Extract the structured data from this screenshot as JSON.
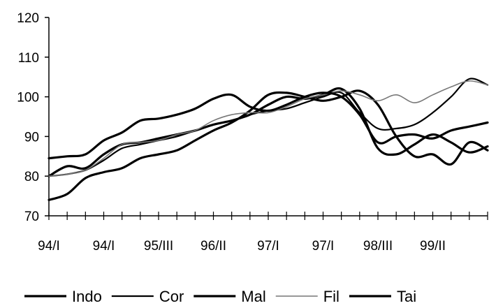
{
  "chart_data": {
    "type": "line",
    "title": "",
    "xlabel": "",
    "ylabel": "",
    "ylim": [
      70,
      120
    ],
    "yticks": [
      70,
      80,
      90,
      100,
      110,
      120
    ],
    "x_tick_labels": [
      "94/I",
      "94/I",
      "95/III",
      "96/II",
      "97/I",
      "97/I",
      "98/III",
      "99/II"
    ],
    "grid": false,
    "legend_position": "bottom",
    "n_points": 25,
    "series": [
      {
        "name": "Indo",
        "color": "#000000",
        "style": "thick",
        "values": [
          74,
          75.5,
          79.5,
          81,
          82,
          84.5,
          85.5,
          86.5,
          89,
          91.5,
          93.5,
          96.5,
          100.5,
          101,
          100,
          99,
          100,
          101.5,
          98,
          90,
          85,
          85.5,
          83,
          88.5,
          86.5
        ]
      },
      {
        "name": "Cor",
        "color": "#000000",
        "style": "medium",
        "values": [
          80,
          80.5,
          81.5,
          84,
          87,
          88,
          89,
          90,
          91.5,
          93,
          94,
          95.5,
          96.5,
          97,
          98.5,
          100,
          101,
          96,
          92,
          92,
          93,
          96,
          100,
          104.5,
          103
        ]
      },
      {
        "name": "Mal",
        "color": "#000000",
        "style": "thick",
        "values": [
          80,
          82.5,
          82,
          85.5,
          88,
          88.5,
          89.5,
          90.5,
          91.5,
          93,
          94,
          95.5,
          98,
          100,
          99.5,
          100.5,
          102,
          97,
          87,
          85.5,
          88,
          90.5,
          88.5,
          86,
          87.5
        ]
      },
      {
        "name": "Fil",
        "color": "#777777",
        "style": "thin",
        "values": [
          80,
          80.5,
          81.5,
          84.5,
          88,
          88.5,
          89,
          90.5,
          91.5,
          94,
          95.5,
          96,
          96,
          97.5,
          99.5,
          100.5,
          101.5,
          100.5,
          99,
          100.5,
          98.5,
          100.5,
          102.5,
          104,
          103
        ]
      },
      {
        "name": "Tai",
        "color": "#000000",
        "style": "thick",
        "values": [
          84.5,
          85,
          85.5,
          89,
          91,
          94,
          94.5,
          95.5,
          97,
          99.5,
          100.5,
          97.5,
          96.5,
          98,
          100,
          101,
          100,
          95.5,
          88.5,
          90,
          90.5,
          89.5,
          91.5,
          92.5,
          93.5
        ]
      }
    ]
  }
}
